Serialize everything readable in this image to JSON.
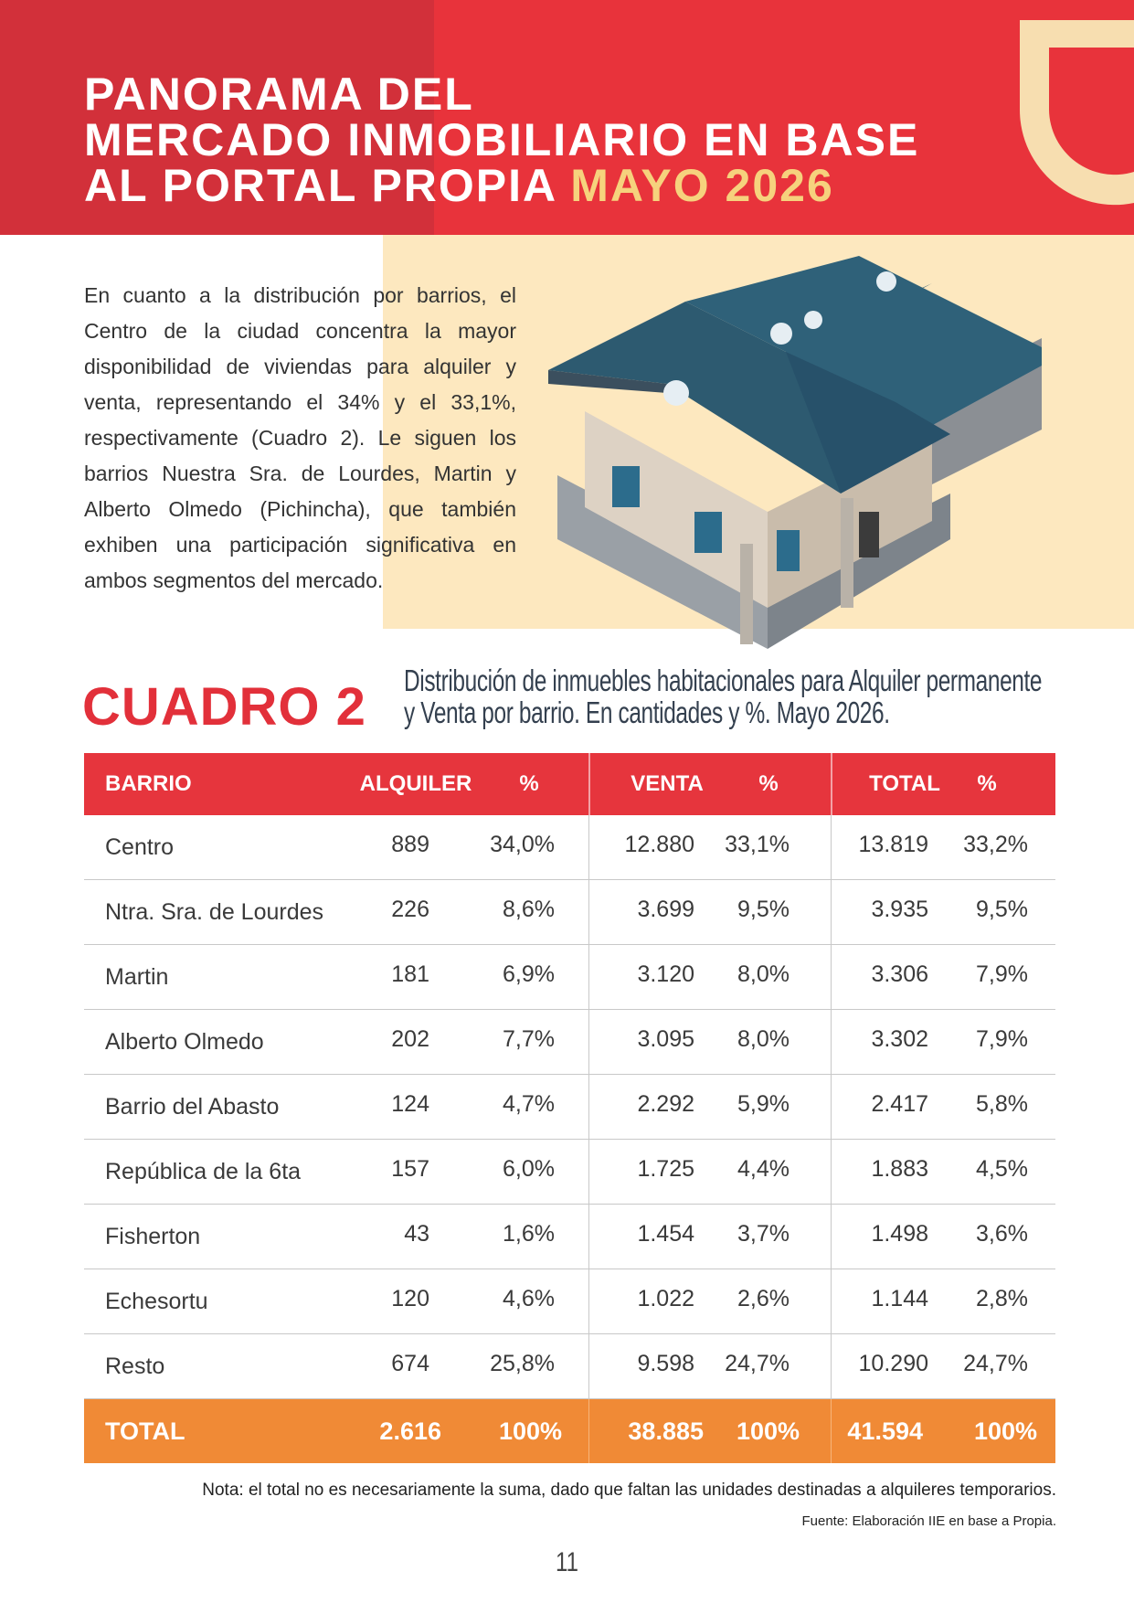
{
  "header": {
    "title_lines": [
      "PANORAMA DEL",
      "MERCADO INMOBILIARIO EN BASE",
      "AL PORTAL PROPIA"
    ],
    "title_highlight": "MAYO 2026"
  },
  "intro": "En cuanto a la distribución por barrios, el Centro de la ciudad concentra la mayor disponibilidad de viviendas para alquiler y venta, representando el 34% y el 33,1%, respectivamente (Cuadro 2). Le siguen los barrios Nuestra Sra. de Lourdes, Martin y Alberto Olmedo (Pichincha), que también exhiben una participación significativa en ambos segmentos del mercado.",
  "cuadro": {
    "label": "CUADRO 2",
    "caption_lines": [
      "Distribución de inmuebles habitacionales para Alquiler permanente",
      "y Venta por barrio. En cantidades y %. Mayo 2026."
    ]
  },
  "table": {
    "columns": [
      "BARRIO",
      "ALQUILER",
      "%",
      "VENTA",
      "%",
      "TOTAL",
      "%"
    ],
    "rows": [
      [
        "Centro",
        "889",
        "34,0%",
        "12.880",
        "33,1%",
        "13.819",
        "33,2%"
      ],
      [
        "Ntra. Sra. de Lourdes",
        "226",
        "8,6%",
        "3.699",
        "9,5%",
        "3.935",
        "9,5%"
      ],
      [
        "Martin",
        "181",
        "6,9%",
        "3.120",
        "8,0%",
        "3.306",
        "7,9%"
      ],
      [
        "Alberto Olmedo",
        "202",
        "7,7%",
        "3.095",
        "8,0%",
        "3.302",
        "7,9%"
      ],
      [
        "Barrio del Abasto",
        "124",
        "4,7%",
        "2.292",
        "5,9%",
        "2.417",
        "5,8%"
      ],
      [
        "República de la 6ta",
        "157",
        "6,0%",
        "1.725",
        "4,4%",
        "1.883",
        "4,5%"
      ],
      [
        "Fisherton",
        "43",
        "1,6%",
        "1.454",
        "3,7%",
        "1.498",
        "3,6%"
      ],
      [
        "Echesortu",
        "120",
        "4,6%",
        "1.022",
        "2,6%",
        "1.144",
        "2,8%"
      ],
      [
        "Resto",
        "674",
        "25,8%",
        "9.598",
        "24,7%",
        "10.290",
        "24,7%"
      ]
    ],
    "total": [
      "TOTAL",
      "2.616",
      "100%",
      "38.885",
      "100%",
      "41.594",
      "100%"
    ]
  },
  "note": "Nota: el total no es necesariamente la suma, dado que faltan las unidades destinadas a alquileres temporarios.",
  "source": "Fuente: Elaboración IIE en base a Propia.",
  "page_number": "11"
}
